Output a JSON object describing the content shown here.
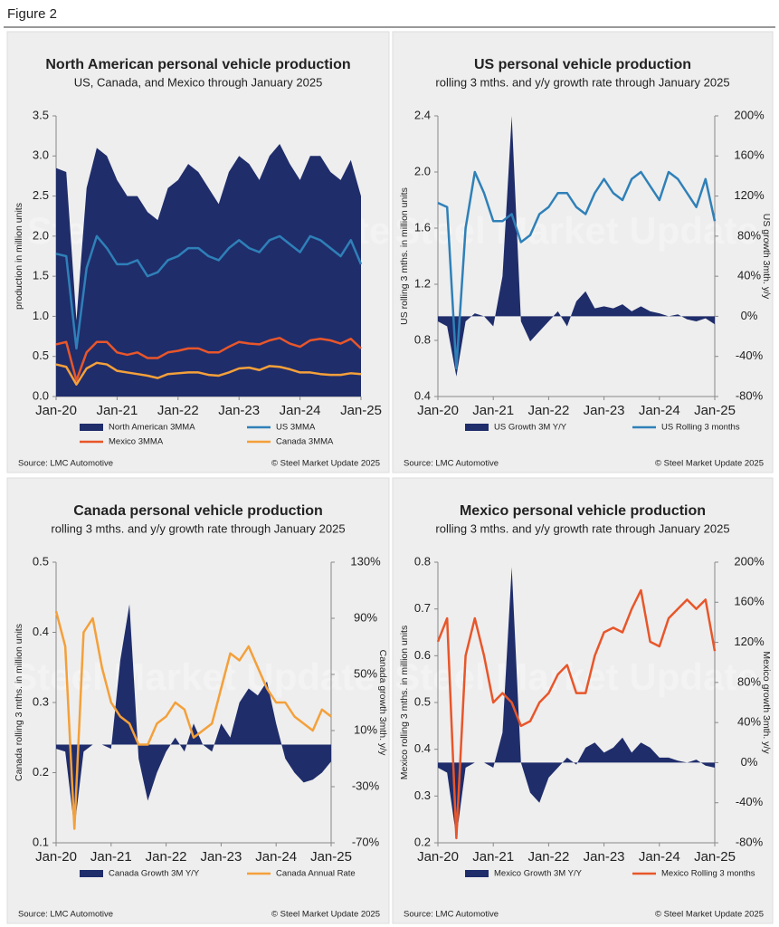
{
  "figure_title": "Figure 2",
  "watermark": "Steel Market Update",
  "chart_data": [
    {
      "type": "line",
      "title": "North American personal vehicle production",
      "subtitle": "US, Canada, and Mexico through January 2025",
      "y_label": "production in million units",
      "source": "Source: LMC Automotive",
      "credit": "© Steel Market Update 2025",
      "categories": [
        "Jan-20",
        null,
        null,
        null,
        null,
        null,
        "Jan-21",
        null,
        null,
        null,
        null,
        null,
        "Jan-22",
        null,
        null,
        null,
        null,
        null,
        "Jan-23",
        null,
        null,
        null,
        null,
        null,
        "Jan-24",
        null,
        null,
        null,
        null,
        null,
        "Jan-25"
      ],
      "ylim": [
        0,
        3.5
      ],
      "yticks": [
        {
          "value": 0,
          "label": "0.0"
        },
        0.5,
        {
          "value": 1,
          "label": "1.0"
        },
        1.5,
        {
          "value": 2,
          "label": "2.0"
        },
        2.5,
        {
          "value": 3,
          "label": "3.0"
        },
        3.5
      ],
      "series": [
        {
          "name": "North American 3MMA",
          "style": "area",
          "color": "#1f2d6b",
          "values": [
            2.85,
            2.8,
            0.95,
            2.6,
            3.1,
            3.0,
            2.7,
            2.5,
            2.5,
            2.3,
            2.2,
            2.6,
            2.7,
            2.9,
            2.8,
            2.6,
            2.4,
            2.8,
            3.0,
            2.9,
            2.7,
            3.0,
            3.15,
            2.9,
            2.7,
            3.0,
            3.0,
            2.8,
            2.7,
            2.95,
            2.5
          ]
        },
        {
          "name": "US 3MMA",
          "style": "line",
          "color": "#2f80b8",
          "values": [
            1.78,
            1.75,
            0.6,
            1.6,
            2.0,
            1.85,
            1.65,
            1.65,
            1.7,
            1.5,
            1.55,
            1.7,
            1.75,
            1.85,
            1.85,
            1.75,
            1.7,
            1.85,
            1.95,
            1.85,
            1.8,
            1.95,
            2.0,
            1.9,
            1.8,
            2.0,
            1.95,
            1.85,
            1.75,
            1.95,
            1.65
          ]
        },
        {
          "name": "Mexico 3MMA",
          "style": "line",
          "color": "#e8562a",
          "values": [
            0.65,
            0.68,
            0.2,
            0.55,
            0.68,
            0.68,
            0.55,
            0.52,
            0.55,
            0.48,
            0.48,
            0.55,
            0.57,
            0.6,
            0.6,
            0.55,
            0.55,
            0.62,
            0.68,
            0.66,
            0.65,
            0.7,
            0.73,
            0.66,
            0.62,
            0.7,
            0.72,
            0.7,
            0.66,
            0.72,
            0.6
          ]
        },
        {
          "name": "Canada 3MMA",
          "style": "line",
          "color": "#f4a03a",
          "values": [
            0.4,
            0.37,
            0.15,
            0.35,
            0.42,
            0.4,
            0.32,
            0.3,
            0.28,
            0.26,
            0.23,
            0.28,
            0.29,
            0.3,
            0.3,
            0.27,
            0.26,
            0.3,
            0.35,
            0.36,
            0.33,
            0.38,
            0.37,
            0.34,
            0.3,
            0.3,
            0.28,
            0.27,
            0.27,
            0.29,
            0.28
          ]
        }
      ]
    },
    {
      "type": "combo",
      "title": "US personal vehicle production",
      "subtitle": "rolling 3 mths. and y/y growth rate through January 2025",
      "y_label": "US rolling 3 mths. in million units",
      "y2_label": "US growth 3mth. y/y",
      "source": "Source: LMC Automotive",
      "credit": "© Steel Market Update 2025",
      "categories": [
        "Jan-20",
        null,
        null,
        null,
        null,
        null,
        "Jan-21",
        null,
        null,
        null,
        null,
        null,
        "Jan-22",
        null,
        null,
        null,
        null,
        null,
        "Jan-23",
        null,
        null,
        null,
        null,
        null,
        "Jan-24",
        null,
        null,
        null,
        null,
        null,
        "Jan-25"
      ],
      "ylim": [
        0.4,
        2.4
      ],
      "yticks": [
        0.4,
        0.8,
        1.2,
        1.6,
        {
          "value": 2,
          "label": "2.0"
        },
        2.4
      ],
      "y2lim": [
        -80,
        200
      ],
      "y2ticks": [
        {
          "value": -80,
          "label": "-80%"
        },
        {
          "value": -40,
          "label": "-40%"
        },
        {
          "value": 0,
          "label": "0%"
        },
        {
          "value": 40,
          "label": "40%"
        },
        {
          "value": 80,
          "label": "80%"
        },
        {
          "value": 120,
          "label": "120%"
        },
        {
          "value": 160,
          "label": "160%"
        },
        {
          "value": 200,
          "label": "200%"
        }
      ],
      "series": [
        {
          "name": "US Growth 3M Y/Y",
          "style": "area",
          "axis": "y2",
          "color": "#1f2d6b",
          "values": [
            -5,
            -10,
            -60,
            -5,
            3,
            0,
            -10,
            40,
            200,
            -5,
            -25,
            -15,
            -5,
            5,
            -10,
            15,
            25,
            8,
            10,
            8,
            12,
            5,
            10,
            5,
            3,
            0,
            2,
            -3,
            -5,
            -2,
            -8
          ]
        },
        {
          "name": "US Rolling 3 months",
          "style": "line",
          "color": "#2f80b8",
          "values": [
            1.78,
            1.75,
            0.6,
            1.6,
            2.0,
            1.85,
            1.65,
            1.65,
            1.7,
            1.5,
            1.55,
            1.7,
            1.75,
            1.85,
            1.85,
            1.75,
            1.7,
            1.85,
            1.95,
            1.85,
            1.8,
            1.95,
            2.0,
            1.9,
            1.8,
            2.0,
            1.95,
            1.85,
            1.75,
            1.95,
            1.65
          ]
        }
      ]
    },
    {
      "type": "combo",
      "title": "Canada personal vehicle production",
      "subtitle": "rolling 3 mths. and y/y growth rate through January 2025",
      "y_label": "Canada rolling 3 mths. in million units",
      "y2_label": "Canada growth 3mth. y/y",
      "source": "Source: LMC Automotive",
      "credit": "© Steel Market Update 2025",
      "categories": [
        "Jan-20",
        null,
        null,
        null,
        null,
        null,
        "Jan-21",
        null,
        null,
        null,
        null,
        null,
        "Jan-22",
        null,
        null,
        null,
        null,
        null,
        "Jan-23",
        null,
        null,
        null,
        null,
        null,
        "Jan-24",
        null,
        null,
        null,
        null,
        null,
        "Jan-25"
      ],
      "ylim": [
        0.1,
        0.5
      ],
      "yticks": [
        0.1,
        0.2,
        0.3,
        0.4,
        0.5
      ],
      "y2lim": [
        -70,
        130
      ],
      "y2ticks": [
        {
          "value": -70,
          "label": "-70%"
        },
        {
          "value": -30,
          "label": "-30%"
        },
        {
          "value": 10,
          "label": "10%"
        },
        {
          "value": 50,
          "label": "50%"
        },
        {
          "value": 90,
          "label": "90%"
        },
        {
          "value": 130,
          "label": "130%"
        }
      ],
      "series": [
        {
          "name": "Canada Growth 3M Y/Y",
          "style": "area",
          "axis": "y2",
          "color": "#1f2d6b",
          "values": [
            -3,
            -5,
            -60,
            -5,
            0,
            0,
            -3,
            60,
            100,
            -10,
            -40,
            -20,
            -5,
            5,
            -5,
            15,
            0,
            -5,
            15,
            5,
            30,
            40,
            35,
            45,
            15,
            -10,
            -20,
            -27,
            -25,
            -20,
            -12
          ]
        },
        {
          "name": "Canada Annual Rate",
          "style": "line",
          "color": "#f4a03a",
          "values": [
            0.43,
            0.38,
            0.12,
            0.4,
            0.42,
            0.35,
            0.3,
            0.28,
            0.27,
            0.24,
            0.24,
            0.27,
            0.28,
            0.3,
            0.29,
            0.25,
            0.26,
            0.27,
            0.32,
            0.37,
            0.36,
            0.38,
            0.35,
            0.32,
            0.3,
            0.3,
            0.28,
            0.27,
            0.26,
            0.29,
            0.28
          ]
        }
      ]
    },
    {
      "type": "combo",
      "title": "Mexico personal vehicle production",
      "subtitle": "rolling 3 mths. and y/y growth rate through January 2025",
      "y_label": "Mexico rolling 3 mths. in million units",
      "y2_label": "Mexico growth 3mth. y/y",
      "source": "Source: LMC Automotive",
      "credit": "© Steel Market Update 2025",
      "categories": [
        "Jan-20",
        null,
        null,
        null,
        null,
        null,
        "Jan-21",
        null,
        null,
        null,
        null,
        null,
        "Jan-22",
        null,
        null,
        null,
        null,
        null,
        "Jan-23",
        null,
        null,
        null,
        null,
        null,
        "Jan-24",
        null,
        null,
        null,
        null,
        null,
        "Jan-25"
      ],
      "ylim": [
        0.2,
        0.8
      ],
      "yticks": [
        0.2,
        0.3,
        0.4,
        0.5,
        0.6,
        0.7,
        0.8
      ],
      "y2lim": [
        -80,
        200
      ],
      "y2ticks": [
        {
          "value": -80,
          "label": "-80%"
        },
        {
          "value": -40,
          "label": "-40%"
        },
        {
          "value": 0,
          "label": "0%"
        },
        {
          "value": 40,
          "label": "40%"
        },
        {
          "value": 80,
          "label": "80%"
        },
        {
          "value": 120,
          "label": "120%"
        },
        {
          "value": 160,
          "label": "160%"
        },
        {
          "value": 200,
          "label": "200%"
        }
      ],
      "series": [
        {
          "name": "Mexico Growth 3M Y/Y",
          "style": "area",
          "axis": "y2",
          "color": "#1f2d6b",
          "values": [
            -5,
            -10,
            -75,
            -5,
            0,
            0,
            -5,
            30,
            195,
            0,
            -30,
            -40,
            -15,
            -5,
            5,
            -2,
            15,
            20,
            10,
            15,
            25,
            10,
            20,
            15,
            5,
            5,
            2,
            0,
            3,
            -3,
            -5
          ]
        },
        {
          "name": "Mexico Rolling 3 months",
          "style": "line",
          "color": "#e8562a",
          "values": [
            0.63,
            0.68,
            0.21,
            0.6,
            0.68,
            0.6,
            0.5,
            0.52,
            0.5,
            0.45,
            0.46,
            0.5,
            0.52,
            0.56,
            0.58,
            0.52,
            0.52,
            0.6,
            0.65,
            0.66,
            0.65,
            0.7,
            0.74,
            0.63,
            0.62,
            0.68,
            0.7,
            0.72,
            0.7,
            0.72,
            0.61
          ]
        }
      ]
    }
  ]
}
